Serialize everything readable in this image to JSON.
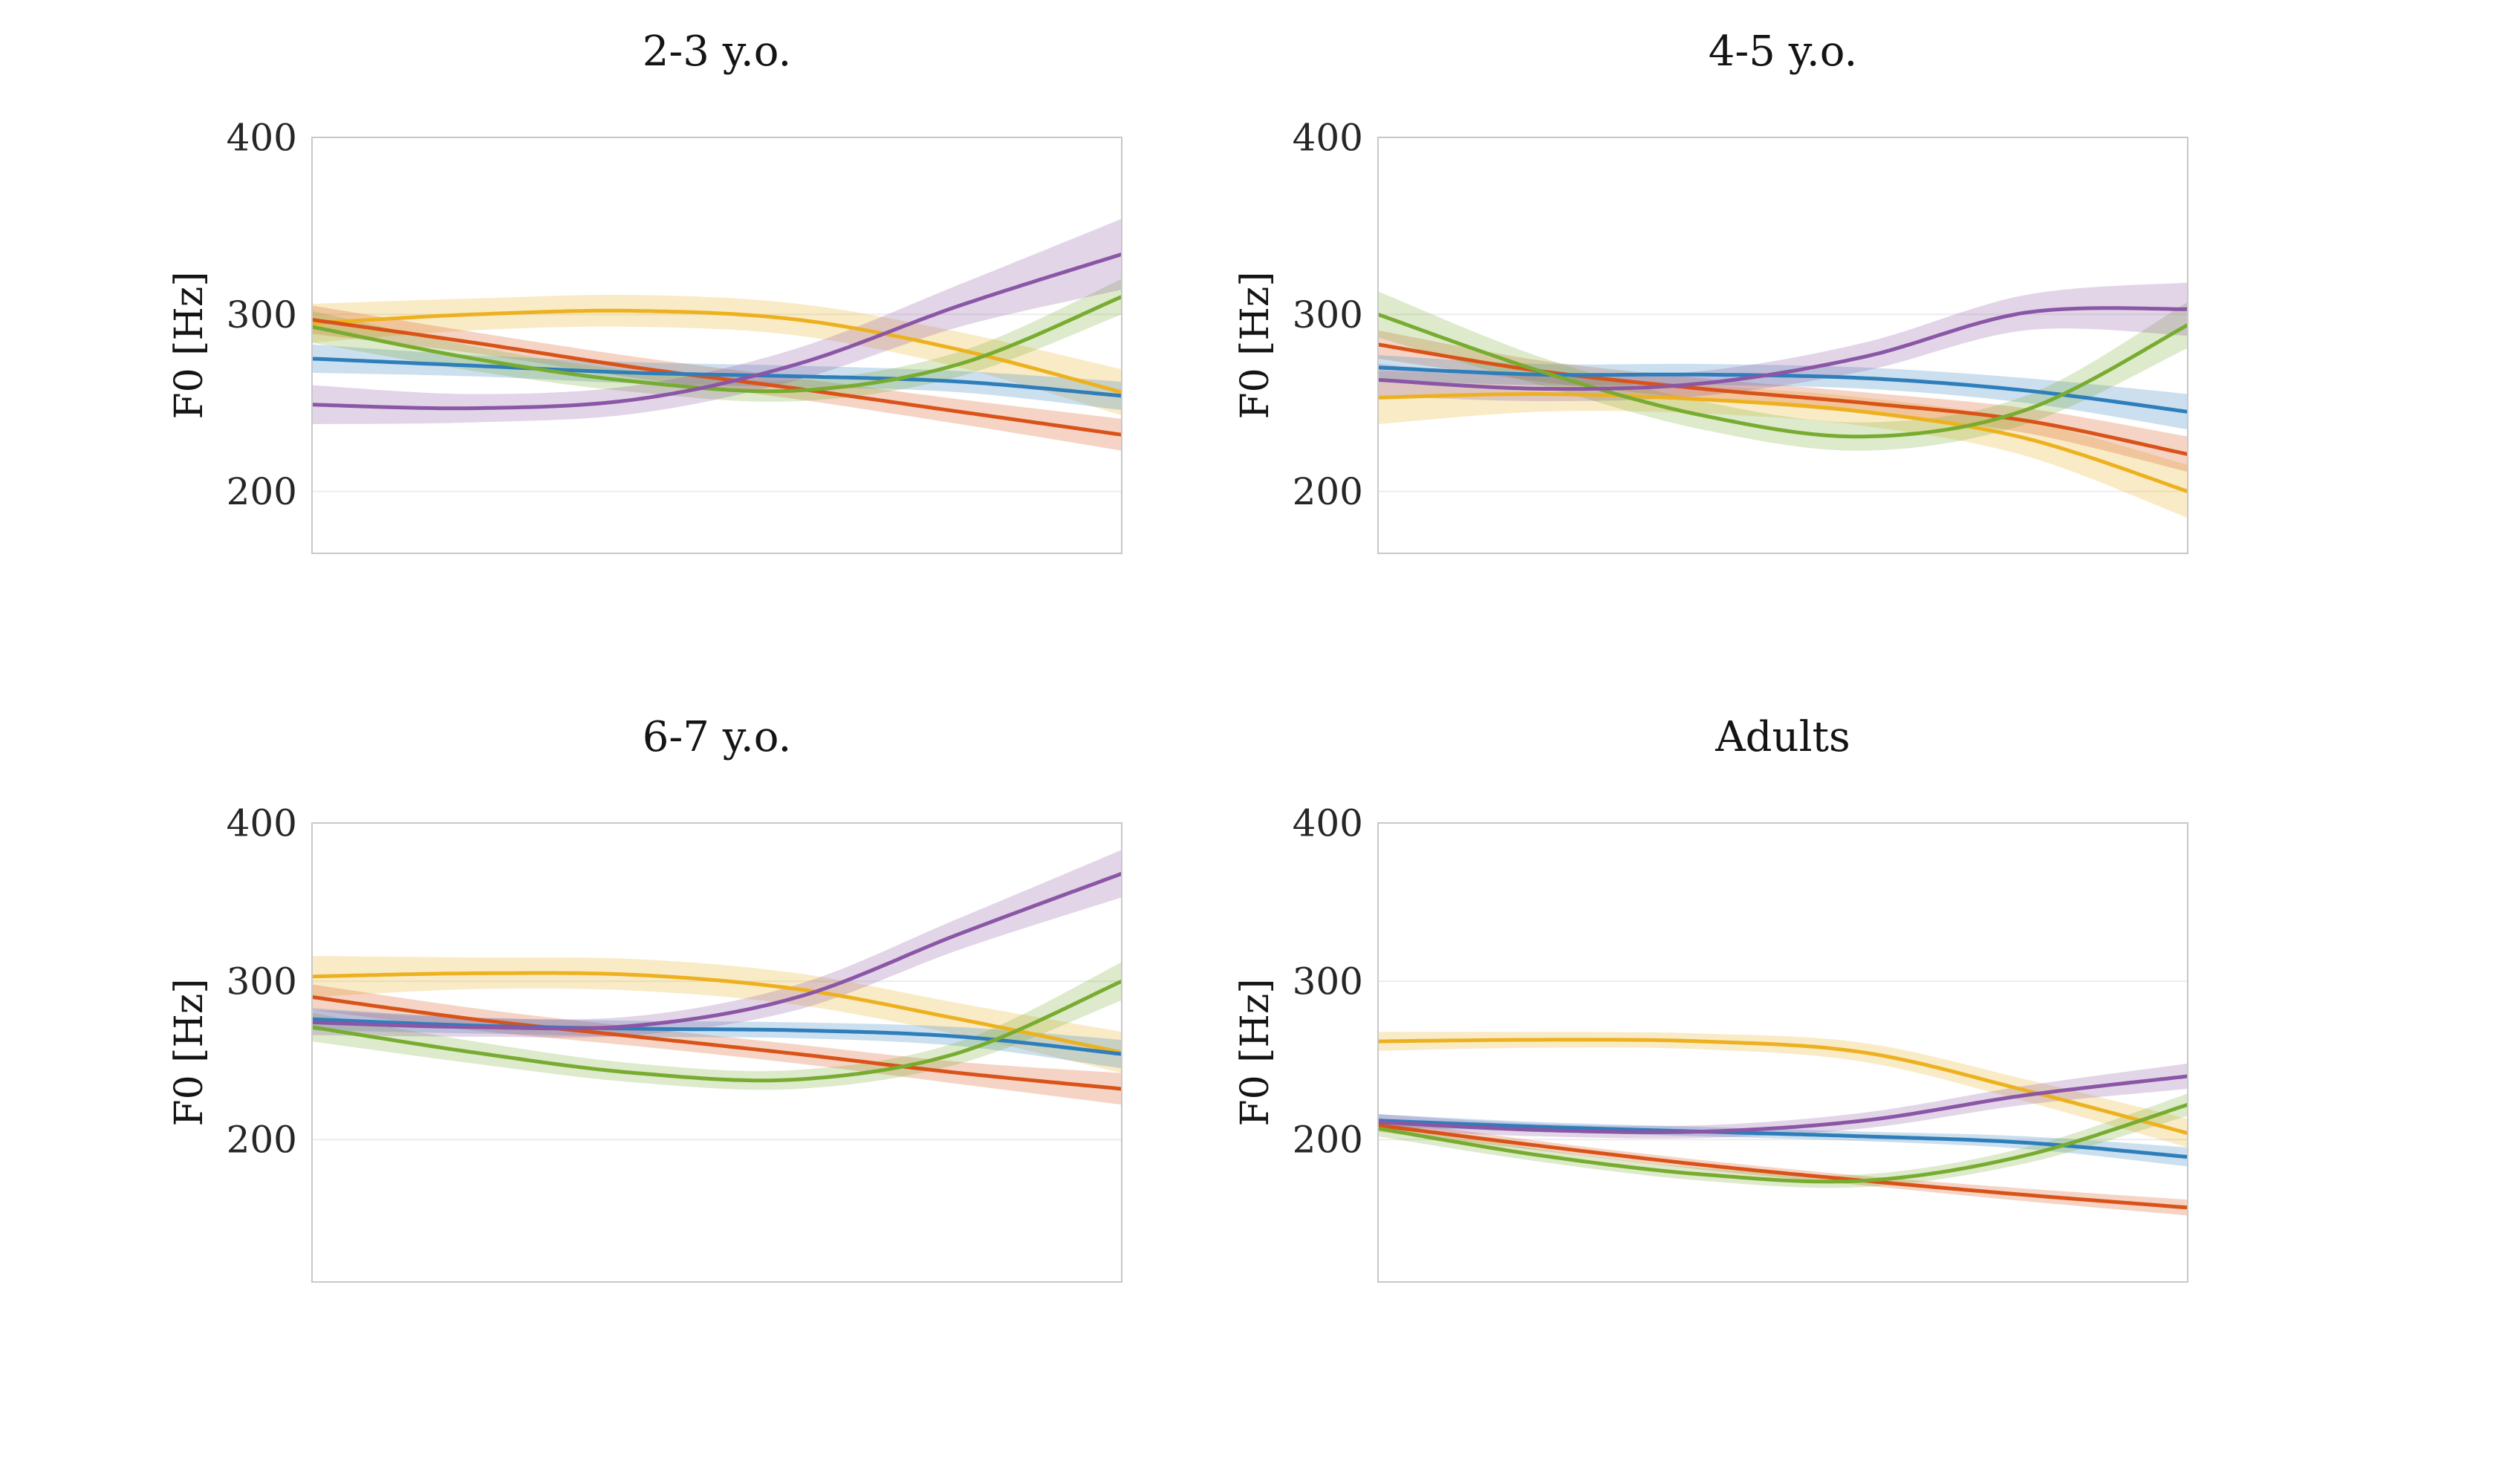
{
  "figure": {
    "background": "#ffffff",
    "y_axis_label": "F0 [Hz]"
  },
  "chart_data": [
    {
      "type": "line",
      "title": "2-3 y.o.",
      "ylabel": "F0 [Hz]",
      "xlabel": "",
      "yticks": [
        400,
        300,
        200
      ],
      "ylim": [
        165,
        400
      ],
      "x": [
        0,
        0.2,
        0.4,
        0.6,
        0.8,
        1.0
      ],
      "grid": "horizontal-light",
      "legend": "none",
      "series": [
        {
          "name": "amber",
          "color": "#EDB120",
          "values": [
            295,
            300,
            302,
            297,
            280,
            256
          ],
          "band": [
            11,
            9,
            9,
            9,
            10,
            13
          ]
        },
        {
          "name": "red",
          "color": "#D95319",
          "values": [
            297,
            284,
            270,
            258,
            245,
            232
          ],
          "band": [
            8,
            6,
            6,
            6,
            7,
            9
          ]
        },
        {
          "name": "blue",
          "color": "#2E7EBB",
          "values": [
            275,
            271,
            267,
            265,
            262,
            254
          ],
          "band": [
            8,
            6,
            6,
            6,
            6,
            8
          ]
        },
        {
          "name": "green",
          "color": "#77AC30",
          "values": [
            293,
            275,
            262,
            257,
            272,
            310
          ],
          "band": [
            9,
            7,
            6,
            6,
            7,
            10
          ]
        },
        {
          "name": "purple",
          "color": "#8A56A5",
          "values": [
            249,
            247,
            252,
            272,
            305,
            334
          ],
          "band": [
            11,
            8,
            8,
            9,
            12,
            20
          ]
        }
      ]
    },
    {
      "type": "line",
      "title": "4-5 y.o.",
      "ylabel": "F0 [Hz]",
      "xlabel": "",
      "yticks": [
        400,
        300,
        200
      ],
      "ylim": [
        165,
        400
      ],
      "x": [
        0,
        0.2,
        0.4,
        0.6,
        0.8,
        1.0
      ],
      "grid": "horizontal-light",
      "legend": "none",
      "series": [
        {
          "name": "amber",
          "color": "#EDB120",
          "values": [
            253,
            255,
            252,
            245,
            230,
            200
          ],
          "band": [
            15,
            10,
            8,
            8,
            10,
            15
          ]
        },
        {
          "name": "red",
          "color": "#D95319",
          "values": [
            283,
            268,
            258,
            250,
            240,
            221
          ],
          "band": [
            8,
            6,
            6,
            6,
            7,
            10
          ]
        },
        {
          "name": "blue",
          "color": "#2E7EBB",
          "values": [
            270,
            266,
            266,
            264,
            257,
            245
          ],
          "band": [
            7,
            6,
            6,
            6,
            7,
            10
          ]
        },
        {
          "name": "green",
          "color": "#77AC30",
          "values": [
            300,
            268,
            243,
            231,
            246,
            294
          ],
          "band": [
            13,
            8,
            8,
            8,
            8,
            13
          ]
        },
        {
          "name": "purple",
          "color": "#8A56A5",
          "values": [
            263,
            258,
            261,
            276,
            301,
            303
          ],
          "band": [
            9,
            7,
            7,
            8,
            10,
            15
          ]
        }
      ]
    },
    {
      "type": "line",
      "title": "6-7 y.o.",
      "ylabel": "F0 [Hz]",
      "xlabel": "",
      "yticks": [
        400,
        300,
        200
      ],
      "ylim": [
        110,
        400
      ],
      "x": [
        0,
        0.2,
        0.4,
        0.6,
        0.8,
        1.0
      ],
      "grid": "horizontal-light",
      "legend": "none",
      "series": [
        {
          "name": "amber",
          "color": "#EDB120",
          "values": [
            303,
            305,
            304,
            295,
            276,
            255
          ],
          "band": [
            13,
            10,
            10,
            10,
            10,
            13
          ]
        },
        {
          "name": "red",
          "color": "#D95319",
          "values": [
            290,
            276,
            265,
            254,
            242,
            232
          ],
          "band": [
            8,
            7,
            6,
            6,
            7,
            10
          ]
        },
        {
          "name": "blue",
          "color": "#2E7EBB",
          "values": [
            276,
            272,
            270,
            269,
            265,
            254
          ],
          "band": [
            7,
            5,
            5,
            5,
            6,
            9
          ]
        },
        {
          "name": "green",
          "color": "#77AC30",
          "values": [
            271,
            255,
            242,
            238,
            255,
            300
          ],
          "band": [
            9,
            7,
            6,
            6,
            7,
            12
          ]
        },
        {
          "name": "purple",
          "color": "#8A56A5",
          "values": [
            274,
            271,
            272,
            290,
            330,
            368
          ],
          "band": [
            8,
            6,
            6,
            8,
            10,
            15
          ]
        }
      ]
    },
    {
      "type": "line",
      "title": "Adults",
      "ylabel": "F0 [Hz]",
      "xlabel": "",
      "yticks": [
        400,
        300,
        200
      ],
      "ylim": [
        110,
        400
      ],
      "x": [
        0,
        0.2,
        0.4,
        0.6,
        0.8,
        1.0
      ],
      "grid": "horizontal-light",
      "legend": "none",
      "series": [
        {
          "name": "amber",
          "color": "#EDB120",
          "values": [
            262,
            263,
            262,
            255,
            231,
            204
          ],
          "band": [
            6,
            5,
            5,
            6,
            7,
            9
          ]
        },
        {
          "name": "red",
          "color": "#D95319",
          "values": [
            209,
            196,
            184,
            174,
            165,
            157
          ],
          "band": [
            4,
            3,
            3,
            3,
            4,
            5
          ]
        },
        {
          "name": "blue",
          "color": "#2E7EBB",
          "values": [
            212,
            208,
            205,
            202,
            198,
            189
          ],
          "band": [
            4,
            3,
            3,
            3,
            4,
            6
          ]
        },
        {
          "name": "green",
          "color": "#77AC30",
          "values": [
            207,
            190,
            178,
            174,
            190,
            222
          ],
          "band": [
            5,
            4,
            4,
            4,
            5,
            7
          ]
        },
        {
          "name": "purple",
          "color": "#8A56A5",
          "values": [
            211,
            206,
            205,
            212,
            228,
            240
          ],
          "band": [
            5,
            4,
            4,
            5,
            6,
            8
          ]
        }
      ]
    }
  ],
  "style": {
    "axis_box_color": "#c8c8c8",
    "gridline_color": "#ececec",
    "ribbon_opacity": 0.25
  }
}
